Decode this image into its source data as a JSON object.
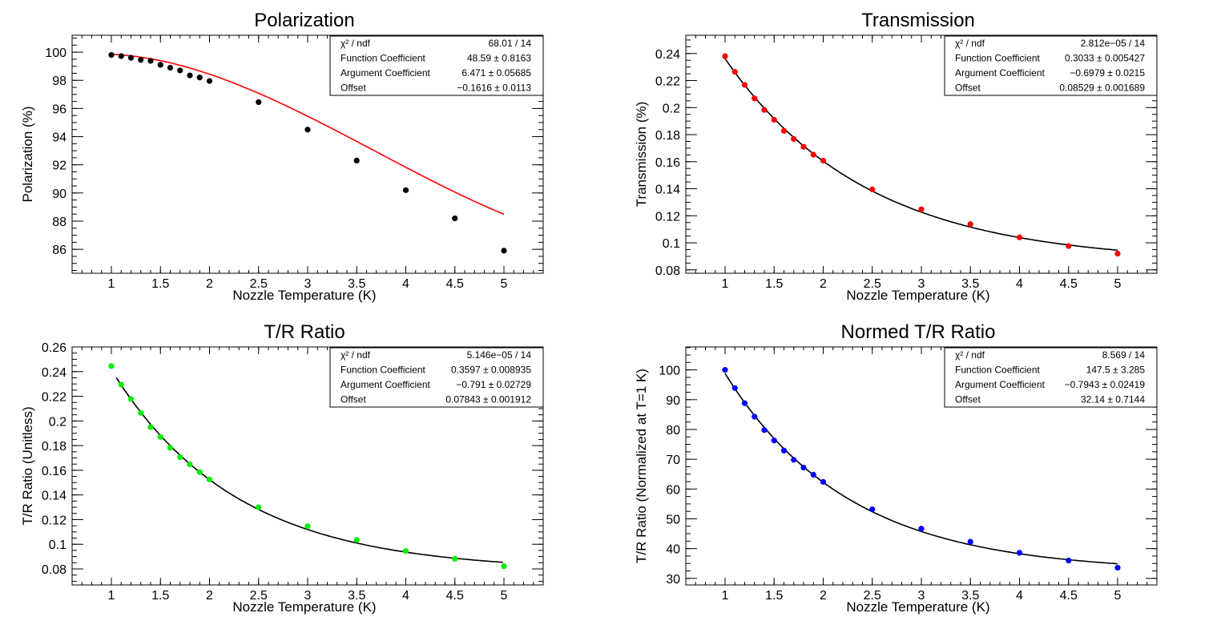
{
  "chart_data": [
    {
      "type": "scatter",
      "title": "Polarization",
      "xlabel": "Nozzle Temperature (K)",
      "ylabel": "Polarization (%)",
      "xlim": [
        0.6,
        5.4
      ],
      "ylim": [
        84.3,
        101.2
      ],
      "xticks": [
        1,
        1.5,
        2,
        2.5,
        3,
        3.5,
        4,
        4.5,
        5
      ],
      "xtick_labels": [
        "1",
        "1.5",
        "2",
        "2.5",
        "3",
        "3.5",
        "4",
        "4.5",
        "5"
      ],
      "yticks": [
        86,
        88,
        90,
        92,
        94,
        96,
        98,
        100
      ],
      "ytick_labels": [
        "86",
        "88",
        "90",
        "92",
        "94",
        "96",
        "98",
        "100"
      ],
      "marker_color": "#000000",
      "fit_color": "#ff0000",
      "points": {
        "x": [
          1,
          1.1,
          1.2,
          1.3,
          1.4,
          1.5,
          1.6,
          1.7,
          1.8,
          1.9,
          2,
          2.5,
          3,
          3.5,
          4,
          4.5,
          5
        ],
        "y": [
          99.8,
          99.72,
          99.6,
          99.45,
          99.38,
          99.1,
          98.9,
          98.7,
          98.35,
          98.2,
          97.95,
          96.45,
          94.5,
          92.3,
          90.2,
          88.2,
          85.9
        ]
      },
      "fit": {
        "a": 48.59,
        "b": 6.471,
        "c": -0.1616,
        "range": [
          1,
          5
        ],
        "mode": "polarization"
      },
      "stats": [
        {
          "label": "χ² / ndf",
          "value": "68.01 / 14"
        },
        {
          "label": "Function Coefficient",
          "value": "48.59 ± 0.8163"
        },
        {
          "label": "Argument Coefficient",
          "value": "6.471 ± 0.05685"
        },
        {
          "label": "Offset",
          "value": "−0.1616 ± 0.0113"
        }
      ]
    },
    {
      "type": "scatter",
      "title": "Transmission",
      "xlabel": "Nozzle Temperature (K)",
      "ylabel": "Transmission (%)",
      "xlim": [
        0.6,
        5.4
      ],
      "ylim": [
        0.0775,
        0.2535
      ],
      "xticks": [
        1,
        1.5,
        2,
        2.5,
        3,
        3.5,
        4,
        4.5,
        5
      ],
      "xtick_labels": [
        "1",
        "1.5",
        "2",
        "2.5",
        "3",
        "3.5",
        "4",
        "4.5",
        "5"
      ],
      "yticks": [
        0.08,
        0.1,
        0.12,
        0.14,
        0.16,
        0.18,
        0.2,
        0.22,
        0.24
      ],
      "ytick_labels": [
        "0.08",
        "0.1",
        "0.12",
        "0.14",
        "0.16",
        "0.18",
        "0.2",
        "0.22",
        "0.24"
      ],
      "marker_color": "#ff0000",
      "fit_color": "#000000",
      "points": {
        "x": [
          1,
          1.1,
          1.2,
          1.3,
          1.4,
          1.5,
          1.6,
          1.7,
          1.8,
          1.9,
          2,
          2.5,
          3,
          3.5,
          4,
          4.5,
          5
        ],
        "y": [
          0.238,
          0.2265,
          0.2168,
          0.2068,
          0.1983,
          0.191,
          0.1828,
          0.1768,
          0.171,
          0.1652,
          0.1608,
          0.1395,
          0.1248,
          0.1138,
          0.104,
          0.0976,
          0.092
        ]
      },
      "fit": {
        "a": 0.3033,
        "b": -0.6979,
        "c": 0.08529,
        "range": [
          1,
          5
        ],
        "mode": "exp"
      },
      "stats": [
        {
          "label": "χ² / ndf",
          "value": "2.812e−05 / 14"
        },
        {
          "label": "Function Coefficient",
          "value": "0.3033 ± 0.005427"
        },
        {
          "label": "Argument Coefficient",
          "value": "−0.6979 ± 0.0215"
        },
        {
          "label": "Offset",
          "value": "0.08529 ± 0.001689"
        }
      ]
    },
    {
      "type": "scatter",
      "title": "T/R Ratio",
      "xlabel": "Nozzle Temperature (K)",
      "ylabel": "T/R Ratio (Unitless)",
      "xlim": [
        0.6,
        5.4
      ],
      "ylim": [
        0.067,
        0.26
      ],
      "xticks": [
        1,
        1.5,
        2,
        2.5,
        3,
        3.5,
        4,
        4.5,
        5
      ],
      "xtick_labels": [
        "1",
        "1.5",
        "2",
        "2.5",
        "3",
        "3.5",
        "4",
        "4.5",
        "5"
      ],
      "yticks": [
        0.08,
        0.1,
        0.12,
        0.14,
        0.16,
        0.18,
        0.2,
        0.22,
        0.24,
        0.26
      ],
      "ytick_labels": [
        "0.08",
        "0.1",
        "0.12",
        "0.14",
        "0.16",
        "0.18",
        "0.2",
        "0.22",
        "0.24",
        "0.26"
      ],
      "marker_color": "#00ee00",
      "fit_color": "#000000",
      "points": {
        "x": [
          1,
          1.1,
          1.2,
          1.3,
          1.4,
          1.5,
          1.6,
          1.7,
          1.8,
          1.9,
          2,
          2.5,
          3,
          3.5,
          4,
          4.5,
          5
        ],
        "y": [
          0.2445,
          0.2295,
          0.2178,
          0.2065,
          0.195,
          0.187,
          0.1782,
          0.1706,
          0.1648,
          0.1585,
          0.1525,
          0.13,
          0.1145,
          0.1035,
          0.0945,
          0.0882,
          0.0822
        ]
      },
      "fit": {
        "a": 0.3597,
        "b": -0.791,
        "c": 0.07843,
        "range": [
          1.05,
          5
        ],
        "mode": "exp"
      },
      "stats": [
        {
          "label": "χ² / ndf",
          "value": "5.146e−05 / 14"
        },
        {
          "label": "Function Coefficient",
          "value": "0.3597 ± 0.008935"
        },
        {
          "label": "Argument Coefficient",
          "value": "−0.791 ± 0.02729"
        },
        {
          "label": "Offset",
          "value": "0.07843 ± 0.001912"
        }
      ]
    },
    {
      "type": "scatter",
      "title": "Normed T/R Ratio",
      "xlabel": "Nozzle Temperature (K)",
      "ylabel": "T/R Ratio (Normalized at T=1 K)",
      "xlim": [
        0.6,
        5.4
      ],
      "ylim": [
        27.8,
        107.7
      ],
      "xticks": [
        1,
        1.5,
        2,
        2.5,
        3,
        3.5,
        4,
        4.5,
        5
      ],
      "xtick_labels": [
        "1",
        "1.5",
        "2",
        "2.5",
        "3",
        "3.5",
        "4",
        "4.5",
        "5"
      ],
      "yticks": [
        30,
        40,
        50,
        60,
        70,
        80,
        90,
        100
      ],
      "ytick_labels": [
        "30",
        "40",
        "50",
        "60",
        "70",
        "80",
        "90",
        "100"
      ],
      "marker_color": "#0000ff",
      "fit_color": "#000000",
      "points": {
        "x": [
          1,
          1.1,
          1.2,
          1.3,
          1.4,
          1.5,
          1.6,
          1.7,
          1.8,
          1.9,
          2,
          2.5,
          3,
          3.5,
          4,
          4.5,
          5
        ],
        "y": [
          100,
          93.9,
          88.8,
          84.3,
          79.8,
          76.3,
          72.9,
          69.8,
          67.2,
          64.8,
          62.4,
          53.2,
          46.7,
          42.3,
          38.6,
          36.0,
          33.6
        ]
      },
      "fit": {
        "a": 147.5,
        "b": -0.7943,
        "c": 32.14,
        "range": [
          1,
          5
        ],
        "mode": "exp"
      },
      "stats": [
        {
          "label": "χ² / ndf",
          "value": "8.569 / 14"
        },
        {
          "label": "Function Coefficient",
          "value": "147.5 ± 3.285"
        },
        {
          "label": "Argument Coefficient",
          "value": "−0.7943 ± 0.02419"
        },
        {
          "label": "Offset",
          "value": "32.14 ± 0.7144"
        }
      ]
    }
  ]
}
